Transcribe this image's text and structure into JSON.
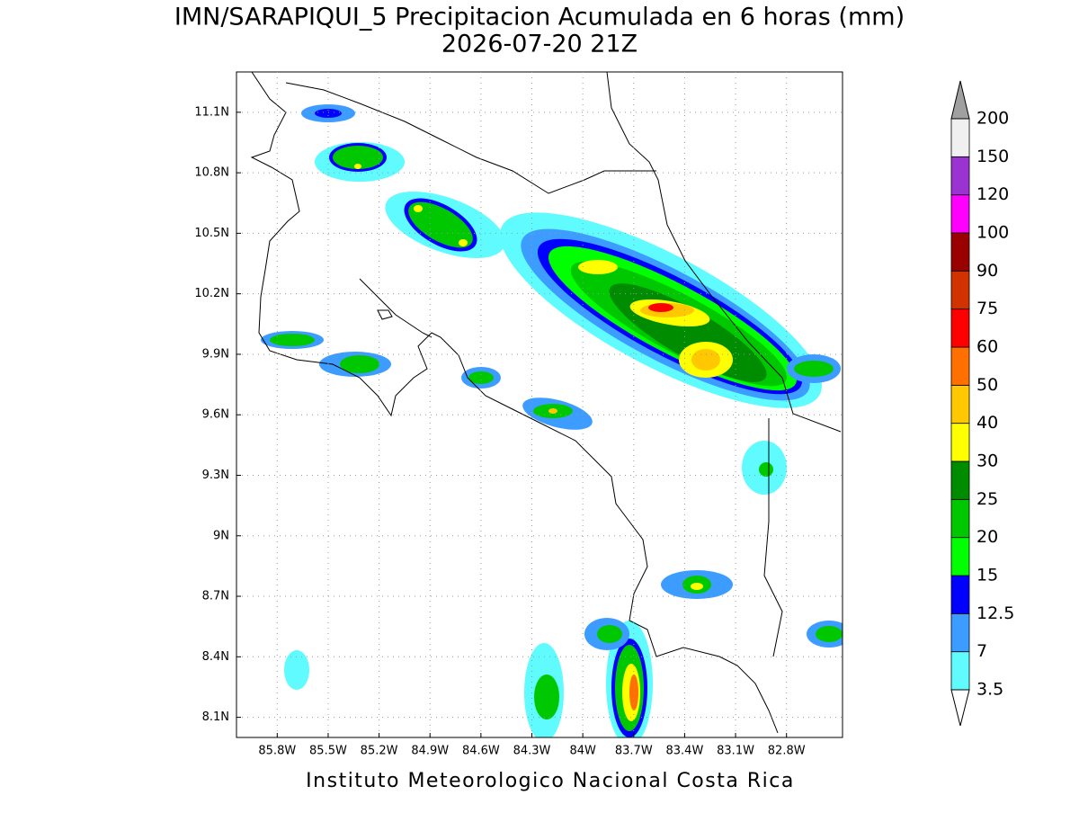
{
  "chart_data": {
    "type": "contour_map",
    "title": "IMN/SARAPIQUI_5 Precipitacion Acumulada en 6 horas (mm)",
    "subtitle": "2026-07-20 21Z",
    "footer": "Instituto Meteorologico Nacional Costa Rica",
    "xlim": [
      -86.04,
      -82.47
    ],
    "ylim": [
      8.0,
      11.3
    ],
    "xticks": [
      {
        "value": -85.8,
        "label": "85.8W"
      },
      {
        "value": -85.5,
        "label": "85.5W"
      },
      {
        "value": -85.2,
        "label": "85.2W"
      },
      {
        "value": -84.9,
        "label": "84.9W"
      },
      {
        "value": -84.6,
        "label": "84.6W"
      },
      {
        "value": -84.3,
        "label": "84.3W"
      },
      {
        "value": -84.0,
        "label": "84W"
      },
      {
        "value": -83.7,
        "label": "83.7W"
      },
      {
        "value": -83.4,
        "label": "83.4W"
      },
      {
        "value": -83.1,
        "label": "83.1W"
      },
      {
        "value": -82.8,
        "label": "82.8W"
      }
    ],
    "yticks": [
      {
        "value": 11.1,
        "label": "11.1N"
      },
      {
        "value": 10.8,
        "label": "10.8N"
      },
      {
        "value": 10.5,
        "label": "10.5N"
      },
      {
        "value": 10.2,
        "label": "10.2N"
      },
      {
        "value": 9.9,
        "label": "9.9N"
      },
      {
        "value": 9.6,
        "label": "9.6N"
      },
      {
        "value": 9.3,
        "label": "9.3N"
      },
      {
        "value": 9.0,
        "label": "9N"
      },
      {
        "value": 8.7,
        "label": "8.7N"
      },
      {
        "value": 8.4,
        "label": "8.4N"
      },
      {
        "value": 8.1,
        "label": "8.1N"
      }
    ],
    "grid": true,
    "colorbar": {
      "levels": [
        3.5,
        7,
        12.5,
        15,
        20,
        25,
        30,
        40,
        50,
        60,
        75,
        90,
        100,
        120,
        150,
        200
      ],
      "colors": [
        "#5ffbff",
        "#3c9cff",
        "#0000ff",
        "#00ff00",
        "#00c800",
        "#008c00",
        "#ffff00",
        "#ffc800",
        "#ff7000",
        "#ff0000",
        "#d23200",
        "#9b0000",
        "#ff00ff",
        "#9b32d2",
        "#f0f0f0"
      ],
      "under_color": "#ffffff",
      "over_color": "#a0a0a0"
    }
  }
}
